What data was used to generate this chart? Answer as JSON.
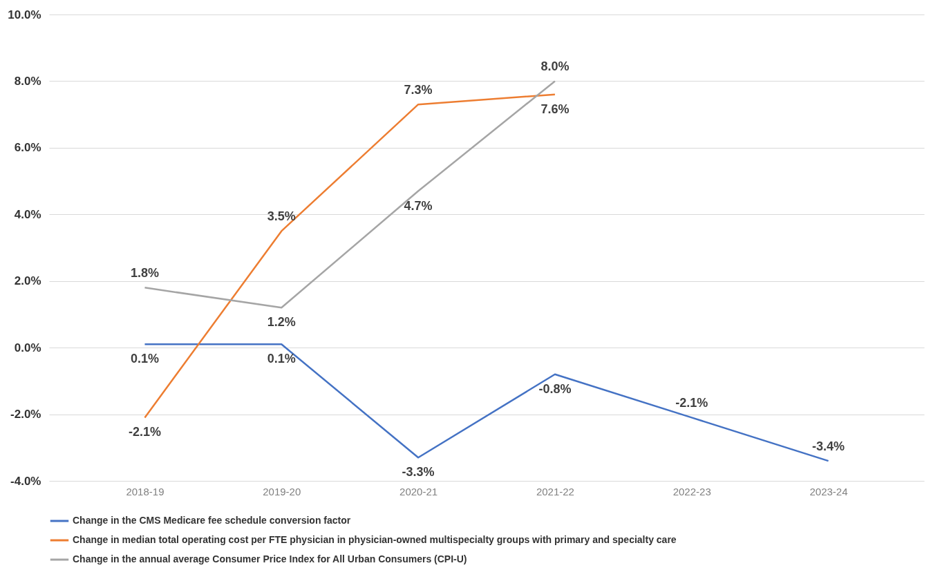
{
  "chart_data": {
    "type": "line",
    "categories": [
      "2018-19",
      "2019-20",
      "2020-21",
      "2021-22",
      "2022-23",
      "2023-24"
    ],
    "series": [
      {
        "name": "Change in the CMS Medicare fee schedule conversion factor",
        "color": "#4472c4",
        "values": [
          0.1,
          0.1,
          -3.3,
          -0.8,
          -2.1,
          -3.4
        ],
        "value_labels": [
          "0.1%",
          "0.1%",
          "-3.3%",
          "-0.8%",
          "-2.1%",
          "-3.4%"
        ]
      },
      {
        "name": "Change in median total operating cost per FTE physician in physician-owned multispecialty groups with primary and specialty care",
        "color": "#ed7d31",
        "values": [
          -2.1,
          3.5,
          7.3,
          7.6,
          null,
          null
        ],
        "value_labels": [
          "-2.1%",
          "3.5%",
          "7.3%",
          "7.6%",
          null,
          null
        ]
      },
      {
        "name": "Change in the annual average Consumer Price Index for All Urban Consumers (CPI-U)",
        "color": "#a5a5a5",
        "values": [
          1.8,
          1.2,
          4.7,
          8.0,
          null,
          null
        ],
        "value_labels": [
          "1.8%",
          "1.2%",
          "4.7%",
          "8.0%",
          null,
          null
        ]
      }
    ],
    "ylim": [
      -4,
      10
    ],
    "yticks": [
      {
        "value": -4,
        "label": "-4.0%"
      },
      {
        "value": -2,
        "label": "-2.0%"
      },
      {
        "value": 0,
        "label": "0.0%"
      },
      {
        "value": 2,
        "label": "2.0%"
      },
      {
        "value": 4,
        "label": "4.0%"
      },
      {
        "value": 6,
        "label": "6.0%"
      },
      {
        "value": 8,
        "label": "8.0%"
      },
      {
        "value": 10,
        "label": "10.0%"
      }
    ],
    "grid": "y",
    "legend": "bottom",
    "marker": "none",
    "line_style": "solid"
  }
}
